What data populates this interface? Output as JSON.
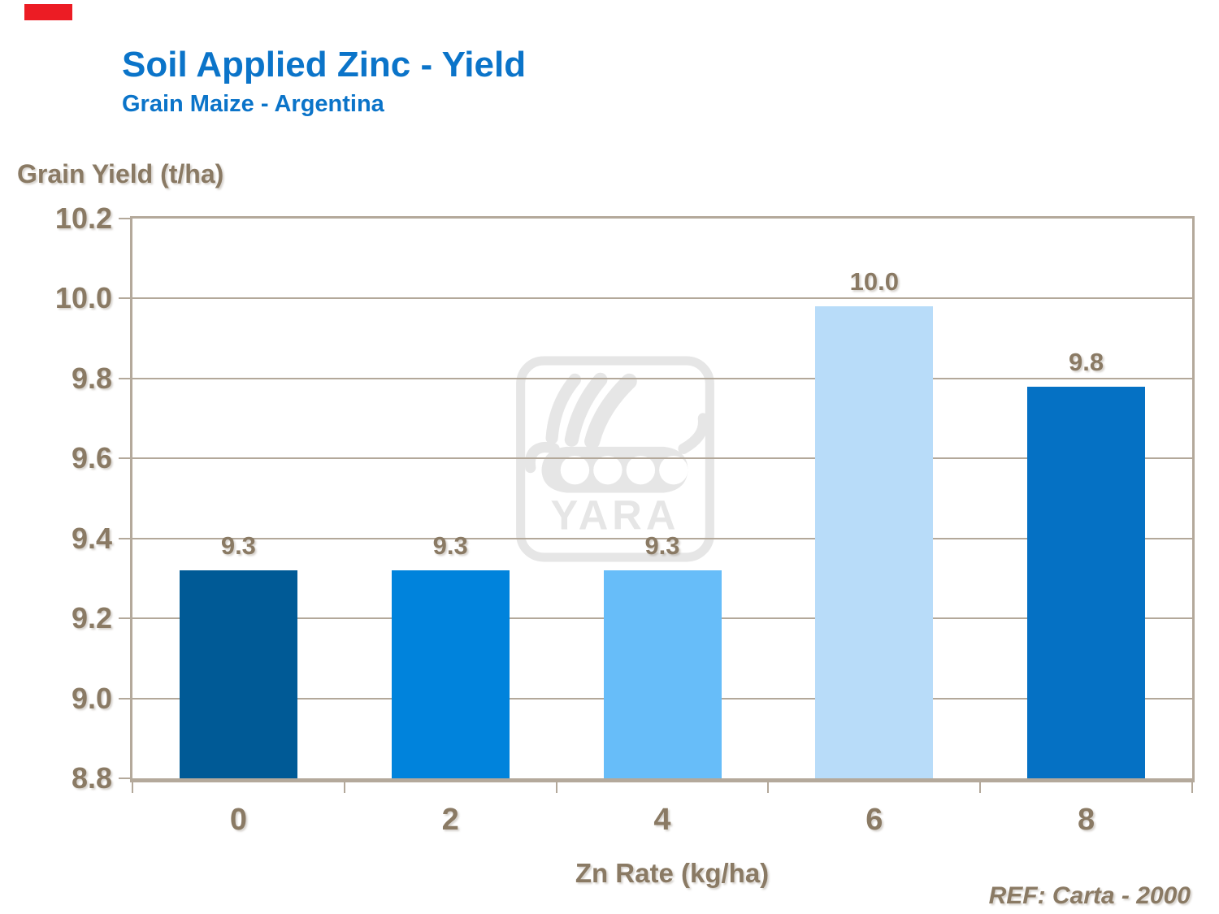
{
  "slide": {
    "title": "Soil Applied Zinc - Yield",
    "subtitle": "Grain Maize - Argentina",
    "title_color": "#0B74C9",
    "accent_bar_color": "#EC1C24",
    "ref_note": "REF: Carta - 2000"
  },
  "chart_data": {
    "type": "bar",
    "title": "Soil Applied Zinc - Yield",
    "subtitle": "Grain Maize - Argentina",
    "categories": [
      "0",
      "2",
      "4",
      "6",
      "8"
    ],
    "values": [
      9.32,
      9.32,
      9.32,
      9.98,
      9.78
    ],
    "bar_labels": [
      "9.3",
      "9.3",
      "9.3",
      "10.0",
      "9.8"
    ],
    "bar_colors": [
      "#005A96",
      "#0083DC",
      "#67BDF9",
      "#B8DCF9",
      "#0571C4"
    ],
    "xlabel": "Zn Rate (kg/ha)",
    "ylabel": "Grain Yield (t/ha)",
    "ylim": [
      8.8,
      10.2
    ],
    "ytick_step": 0.2,
    "yticks": [
      "10.2",
      "10.0",
      "9.8",
      "9.6",
      "9.4",
      "9.2",
      "9.0",
      "8.8"
    ],
    "grid": "horizontal",
    "legend": "none",
    "text_color": "#8A7A64",
    "line_color": "#B3A89A",
    "watermark_text": "YARA",
    "watermark_color": "#E6E6E6",
    "ref_note": "REF: Carta - 2000"
  }
}
